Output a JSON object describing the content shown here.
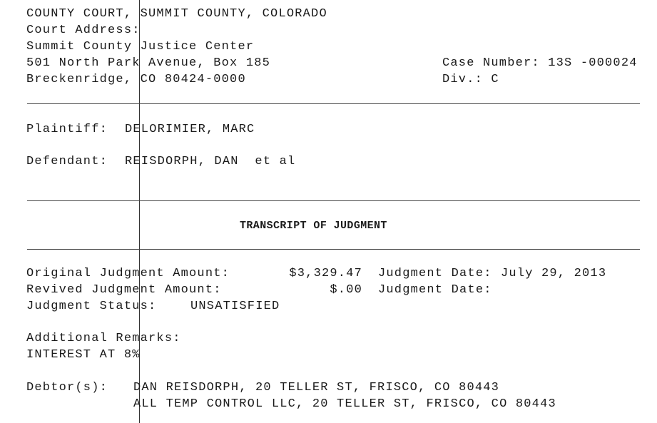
{
  "header": {
    "court": "COUNTY COURT, SUMMIT COUNTY, COLORADO",
    "address_label": "Court Address:",
    "address_line1": "Summit County Justice Center",
    "address_line2": "501 North Park Avenue, Box 185",
    "address_line3": "Breckenridge, CO 80424-0000",
    "case_number": "Case Number: 13S -000024",
    "division": "Div.: C"
  },
  "parties": {
    "plaintiff_label": "Plaintiff:",
    "plaintiff": "DELORIMIER, MARC",
    "defendant_label": "Defendant:",
    "defendant": "REISDORPH, DAN  et al"
  },
  "title": "TRANSCRIPT OF JUDGMENT",
  "judgment": {
    "original_label": "Original Judgment Amount:",
    "original_amount": "$3,329.47",
    "original_date_label": "Judgment Date:",
    "original_date": "July 29, 2013",
    "revived_label": "Revived Judgment Amount:",
    "revived_amount": "$.00",
    "revived_date_label": "Judgment Date:",
    "status_label": "Judgment Status:",
    "status": "UNSATISFIED"
  },
  "remarks": {
    "label": "Additional Remarks:",
    "text": "INTEREST AT 8%"
  },
  "debtors": {
    "label": "Debtor(s):",
    "items": [
      "DAN REISDORPH, 20 TELLER ST, FRISCO, CO 80443",
      "ALL TEMP CONTROL LLC, 20 TELLER ST, FRISCO, CO 80443"
    ]
  }
}
